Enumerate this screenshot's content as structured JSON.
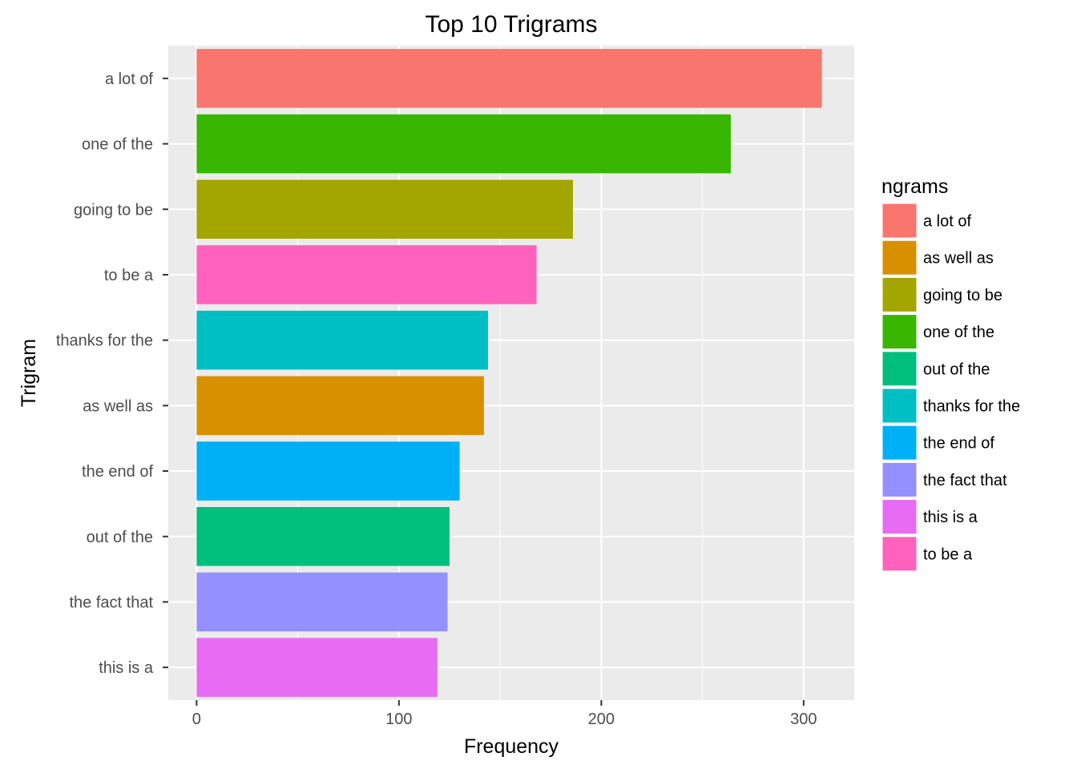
{
  "chart_data": {
    "type": "bar",
    "orientation": "horizontal",
    "title": "Top 10 Trigrams",
    "xlabel": "Frequency",
    "ylabel": "Trigram",
    "xlim": [
      -14,
      325
    ],
    "x_ticks": [
      0,
      100,
      200,
      300
    ],
    "grid": true,
    "legend_position": "right",
    "categories": [
      "a lot of",
      "one of the",
      "going to be",
      "to be a",
      "thanks for the",
      "as well as",
      "the end of",
      "out of the",
      "the fact that",
      "this is a"
    ],
    "values": [
      309,
      264,
      186,
      168,
      144,
      142,
      130,
      125,
      124,
      119
    ],
    "colors": [
      "#F8766D",
      "#39B600",
      "#A3A500",
      "#FF62BC",
      "#00BFC4",
      "#D89000",
      "#00B0F6",
      "#00BF7D",
      "#9590FF",
      "#E76BF3"
    ],
    "legend": {
      "title": "ngrams",
      "items": [
        {
          "label": "a lot of",
          "color": "#F8766D"
        },
        {
          "label": "as well as",
          "color": "#D89000"
        },
        {
          "label": "going to be",
          "color": "#A3A500"
        },
        {
          "label": "one of the",
          "color": "#39B600"
        },
        {
          "label": "out of the",
          "color": "#00BF7D"
        },
        {
          "label": "thanks for the",
          "color": "#00BFC4"
        },
        {
          "label": "the end of",
          "color": "#00B0F6"
        },
        {
          "label": "the fact that",
          "color": "#9590FF"
        },
        {
          "label": "this is a",
          "color": "#E76BF3"
        },
        {
          "label": "to be a",
          "color": "#FF62BC"
        }
      ]
    }
  }
}
